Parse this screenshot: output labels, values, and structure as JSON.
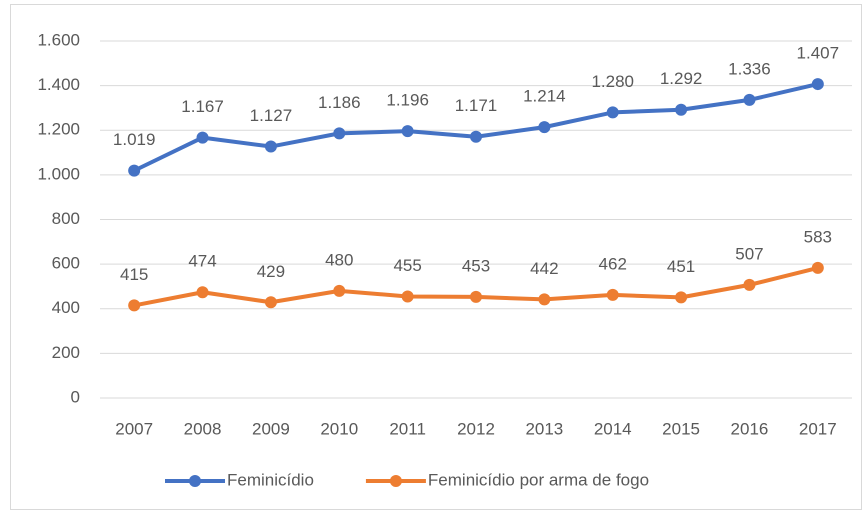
{
  "chart_data": {
    "type": "line",
    "categories": [
      "2007",
      "2008",
      "2009",
      "2010",
      "2011",
      "2012",
      "2013",
      "2014",
      "2015",
      "2016",
      "2017"
    ],
    "series": [
      {
        "name": "Feminicídio",
        "color": "#4472c4",
        "values": [
          1019,
          1167,
          1127,
          1186,
          1196,
          1171,
          1214,
          1280,
          1292,
          1336,
          1407
        ],
        "value_labels": [
          "1.019",
          "1.167",
          "1.127",
          "1.186",
          "1.196",
          "1.171",
          "1.214",
          "1.280",
          "1.292",
          "1.336",
          "1.407"
        ]
      },
      {
        "name": "Feminicídio por arma de fogo",
        "color": "#ed7d31",
        "values": [
          415,
          474,
          429,
          480,
          455,
          453,
          442,
          462,
          451,
          507,
          583
        ]
      }
    ],
    "ylim": [
      0,
      1600
    ],
    "yticks": [
      0,
      200,
      400,
      600,
      800,
      {
        "value": 1000,
        "label": "1.000"
      },
      {
        "value": 1200,
        "label": "1.200"
      },
      {
        "value": 1400,
        "label": "1.400"
      },
      {
        "value": 1600,
        "label": "1.600"
      }
    ],
    "grid": true,
    "legend": "bottom"
  }
}
